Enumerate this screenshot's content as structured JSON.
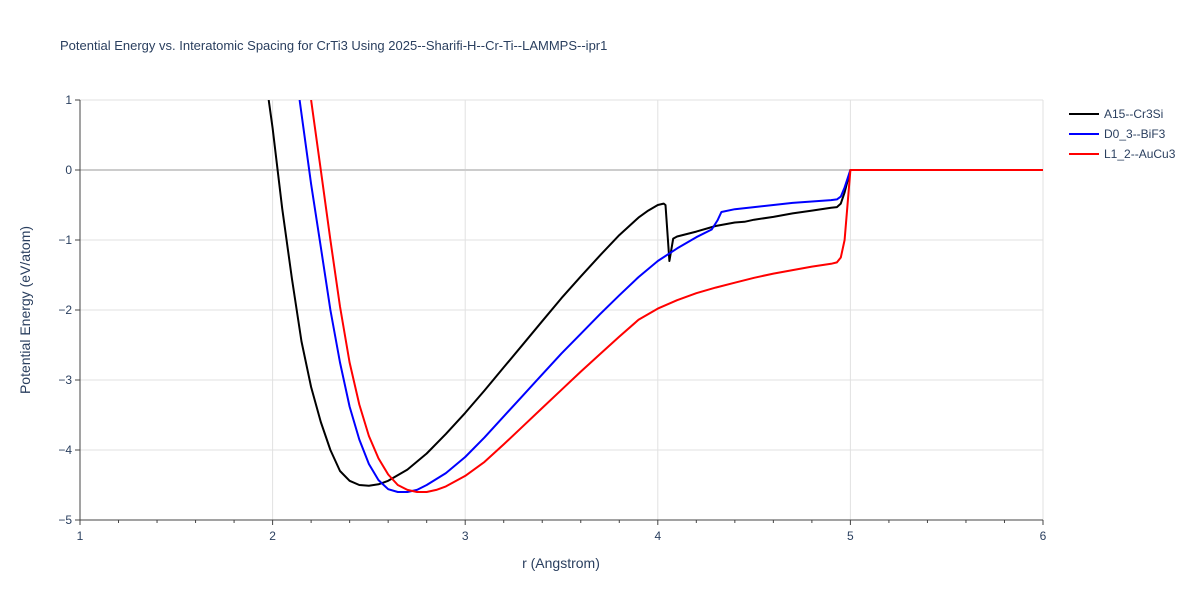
{
  "chart_data": {
    "type": "line",
    "title": "Potential Energy vs. Interatomic Spacing for CrTi3 Using 2025--Sharifi-H--Cr-Ti--LAMMPS--ipr1",
    "xlabel": "r (Angstrom)",
    "ylabel": "Potential Energy (eV/atom)",
    "xlim": [
      1,
      6
    ],
    "ylim": [
      -5,
      1
    ],
    "xticks": [
      1,
      2,
      3,
      4,
      5,
      6
    ],
    "xtick_labels": [
      "1",
      "2",
      "3",
      "4",
      "5",
      "6"
    ],
    "yticks": [
      1,
      0,
      -1,
      -2,
      -3,
      -4,
      -5
    ],
    "ytick_labels": [
      "1",
      "0",
      "−1",
      "−2",
      "−3",
      "−4",
      "−5"
    ],
    "grid": true,
    "legend_position": "top-right",
    "series": [
      {
        "name": "A15--Cr3Si",
        "color": "#000000",
        "x": [
          1.98,
          2.0,
          2.05,
          2.1,
          2.15,
          2.2,
          2.25,
          2.3,
          2.35,
          2.4,
          2.45,
          2.5,
          2.55,
          2.6,
          2.7,
          2.8,
          2.9,
          3.0,
          3.1,
          3.2,
          3.3,
          3.4,
          3.5,
          3.6,
          3.7,
          3.8,
          3.9,
          3.95,
          4.0,
          4.03,
          4.04,
          4.06,
          4.08,
          4.1,
          4.2,
          4.3,
          4.4,
          4.45,
          4.5,
          4.6,
          4.7,
          4.8,
          4.9,
          4.93,
          4.95,
          4.97,
          5.0,
          5.5,
          6.0
        ],
        "y": [
          1.0,
          0.6,
          -0.55,
          -1.55,
          -2.45,
          -3.1,
          -3.6,
          -4.0,
          -4.3,
          -4.44,
          -4.5,
          -4.51,
          -4.49,
          -4.44,
          -4.28,
          -4.05,
          -3.77,
          -3.47,
          -3.15,
          -2.82,
          -2.49,
          -2.16,
          -1.83,
          -1.52,
          -1.22,
          -0.93,
          -0.68,
          -0.58,
          -0.5,
          -0.48,
          -0.5,
          -1.3,
          -0.98,
          -0.95,
          -0.88,
          -0.8,
          -0.75,
          -0.74,
          -0.71,
          -0.67,
          -0.62,
          -0.58,
          -0.54,
          -0.53,
          -0.48,
          -0.32,
          0.0,
          0.0,
          0.0
        ]
      },
      {
        "name": "D0_3--BiF3",
        "color": "#0000ff",
        "x": [
          2.14,
          2.2,
          2.25,
          2.3,
          2.35,
          2.4,
          2.45,
          2.5,
          2.55,
          2.6,
          2.65,
          2.7,
          2.75,
          2.8,
          2.9,
          3.0,
          3.1,
          3.2,
          3.3,
          3.4,
          3.5,
          3.6,
          3.7,
          3.8,
          3.9,
          4.0,
          4.1,
          4.2,
          4.28,
          4.31,
          4.33,
          4.4,
          4.5,
          4.6,
          4.7,
          4.8,
          4.9,
          4.93,
          4.95,
          4.97,
          5.0,
          5.5,
          6.0
        ],
        "y": [
          1.0,
          -0.2,
          -1.1,
          -2.0,
          -2.75,
          -3.38,
          -3.85,
          -4.2,
          -4.43,
          -4.56,
          -4.6,
          -4.6,
          -4.57,
          -4.5,
          -4.33,
          -4.1,
          -3.82,
          -3.52,
          -3.22,
          -2.92,
          -2.62,
          -2.34,
          -2.06,
          -1.79,
          -1.53,
          -1.3,
          -1.12,
          -0.96,
          -0.85,
          -0.72,
          -0.6,
          -0.56,
          -0.53,
          -0.5,
          -0.47,
          -0.45,
          -0.43,
          -0.42,
          -0.38,
          -0.25,
          0.0,
          0.0,
          0.0
        ]
      },
      {
        "name": "L1_2--AuCu3",
        "color": "#ff0000",
        "x": [
          2.2,
          2.25,
          2.3,
          2.35,
          2.4,
          2.45,
          2.5,
          2.55,
          2.6,
          2.65,
          2.7,
          2.75,
          2.8,
          2.85,
          2.9,
          3.0,
          3.1,
          3.2,
          3.3,
          3.4,
          3.5,
          3.6,
          3.7,
          3.8,
          3.9,
          4.0,
          4.1,
          4.2,
          4.3,
          4.4,
          4.5,
          4.6,
          4.7,
          4.8,
          4.9,
          4.93,
          4.95,
          4.97,
          5.0,
          5.5,
          6.0
        ],
        "y": [
          1.0,
          0.0,
          -1.0,
          -1.95,
          -2.75,
          -3.35,
          -3.8,
          -4.12,
          -4.35,
          -4.5,
          -4.57,
          -4.6,
          -4.6,
          -4.57,
          -4.52,
          -4.37,
          -4.17,
          -3.92,
          -3.66,
          -3.4,
          -3.14,
          -2.88,
          -2.63,
          -2.38,
          -2.14,
          -1.98,
          -1.86,
          -1.76,
          -1.68,
          -1.61,
          -1.54,
          -1.48,
          -1.43,
          -1.38,
          -1.34,
          -1.32,
          -1.25,
          -1.0,
          0.0,
          0.0,
          0.0
        ]
      }
    ]
  }
}
